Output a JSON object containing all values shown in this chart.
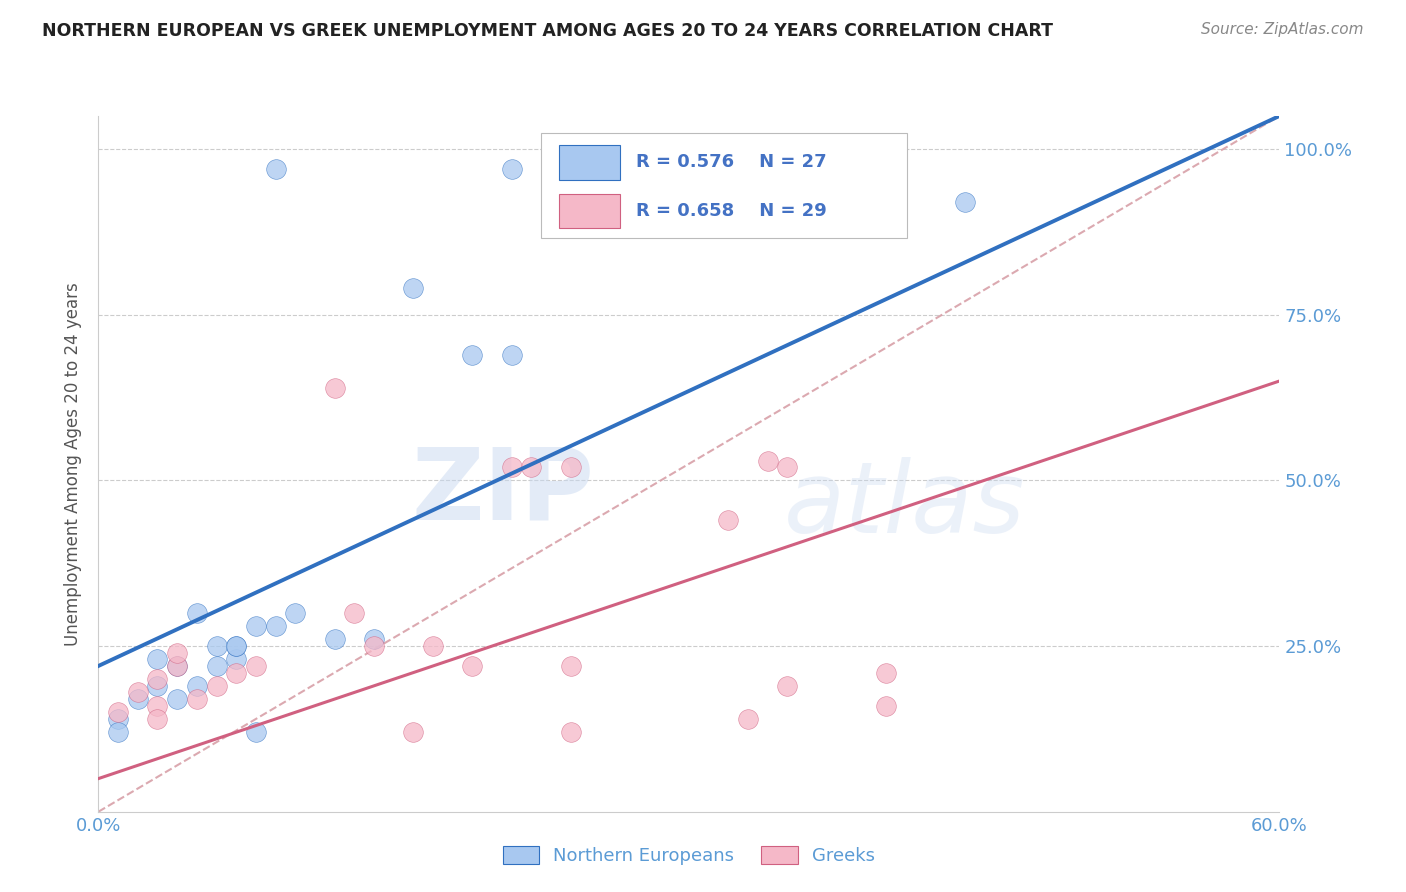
{
  "title": "NORTHERN EUROPEAN VS GREEK UNEMPLOYMENT AMONG AGES 20 TO 24 YEARS CORRELATION CHART",
  "source": "Source: ZipAtlas.com",
  "ylabel": "Unemployment Among Ages 20 to 24 years",
  "xlim": [
    0.0,
    0.6
  ],
  "ylim": [
    0.0,
    1.05
  ],
  "xticks": [
    0.0,
    0.6
  ],
  "xtick_labels": [
    "0.0%",
    "60.0%"
  ],
  "yticks": [
    0.25,
    0.5,
    0.75,
    1.0
  ],
  "ytick_labels": [
    "25.0%",
    "50.0%",
    "75.0%",
    "100.0%"
  ],
  "blue_R": "R = 0.576",
  "blue_N": "N = 27",
  "pink_R": "R = 0.658",
  "pink_N": "N = 29",
  "blue_color": "#A8C8F0",
  "pink_color": "#F5B8C8",
  "blue_line_color": "#3070C0",
  "pink_line_color": "#D06080",
  "diagonal_color": "#D8A0A8",
  "legend_blue_label": "Northern Europeans",
  "legend_pink_label": "Greeks",
  "blue_scatter_x": [
    0.09,
    0.16,
    0.19,
    0.21,
    0.21,
    0.38,
    0.05,
    0.04,
    0.03,
    0.02,
    0.01,
    0.01,
    0.07,
    0.07,
    0.09,
    0.06,
    0.05,
    0.04,
    0.03,
    0.12,
    0.14,
    0.44,
    0.08,
    0.06,
    0.1,
    0.08,
    0.07
  ],
  "blue_scatter_y": [
    0.97,
    0.79,
    0.69,
    0.69,
    0.97,
    0.97,
    0.3,
    0.22,
    0.19,
    0.17,
    0.14,
    0.12,
    0.23,
    0.25,
    0.28,
    0.22,
    0.19,
    0.17,
    0.23,
    0.26,
    0.26,
    0.92,
    0.12,
    0.25,
    0.3,
    0.28,
    0.25
  ],
  "pink_scatter_x": [
    0.12,
    0.21,
    0.32,
    0.35,
    0.04,
    0.03,
    0.02,
    0.01,
    0.08,
    0.07,
    0.06,
    0.05,
    0.04,
    0.03,
    0.03,
    0.13,
    0.14,
    0.17,
    0.19,
    0.24,
    0.24,
    0.22,
    0.34,
    0.16,
    0.4,
    0.4,
    0.33,
    0.35,
    0.24
  ],
  "pink_scatter_y": [
    0.64,
    0.52,
    0.44,
    0.52,
    0.22,
    0.2,
    0.18,
    0.15,
    0.22,
    0.21,
    0.19,
    0.17,
    0.24,
    0.16,
    0.14,
    0.3,
    0.25,
    0.25,
    0.22,
    0.22,
    0.52,
    0.52,
    0.53,
    0.12,
    0.16,
    0.21,
    0.14,
    0.19,
    0.12
  ],
  "blue_line": {
    "x0": 0.0,
    "y0": 0.22,
    "x1": 0.6,
    "y1": 1.05
  },
  "pink_line": {
    "x0": 0.0,
    "y0": 0.05,
    "x1": 0.6,
    "y1": 0.65
  },
  "diag_line": {
    "x0": 0.0,
    "y0": 0.0,
    "x1": 0.6,
    "y1": 1.05
  },
  "watermark_zip": "ZIP",
  "watermark_atlas": "atlas",
  "background_color": "#FFFFFF",
  "grid_color": "#CCCCCC",
  "title_color": "#222222",
  "axis_label_color": "#555555",
  "tick_label_color": "#5B9BD5",
  "source_color": "#888888",
  "legend_text_color": "#4472C4"
}
